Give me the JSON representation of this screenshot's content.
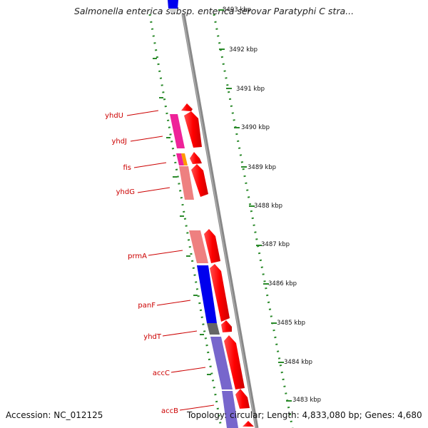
{
  "header": {
    "title": "Salmonella enterica subsp. enterica serovar Paratyphi C stra..."
  },
  "footer": {
    "accession": "Accession: NC_012125",
    "summary": "Topology: circular; Length: 4,833,080 bp; Genes: 4,680"
  },
  "ruler": {
    "labels": [
      "3493 kbp",
      "3492 kbp",
      "3491 kbp",
      "3490 kbp",
      "3489 kbp",
      "3488 kbp",
      "3487 kbp",
      "3486 kbp",
      "3485 kbp",
      "3484 kbp",
      "3483 kbp"
    ]
  },
  "genes": [
    {
      "name": "yhdU"
    },
    {
      "name": "yhdJ"
    },
    {
      "name": "fis"
    },
    {
      "name": "yhdG"
    },
    {
      "name": "prmA"
    },
    {
      "name": "panF"
    },
    {
      "name": "yhdT"
    },
    {
      "name": "accC"
    },
    {
      "name": "accB"
    }
  ],
  "colors": {
    "forward_strand": "#ff0000",
    "backbone": "#888888",
    "ruler": "#2a8a2a",
    "label": "#cc0000",
    "cog_magenta": "#ee2299",
    "cog_salmon": "#ee8080",
    "cog_blue": "#0000ee",
    "cog_lavender": "#7766cc",
    "cog_gray": "#666666",
    "cog_orange": "#ff9900"
  }
}
